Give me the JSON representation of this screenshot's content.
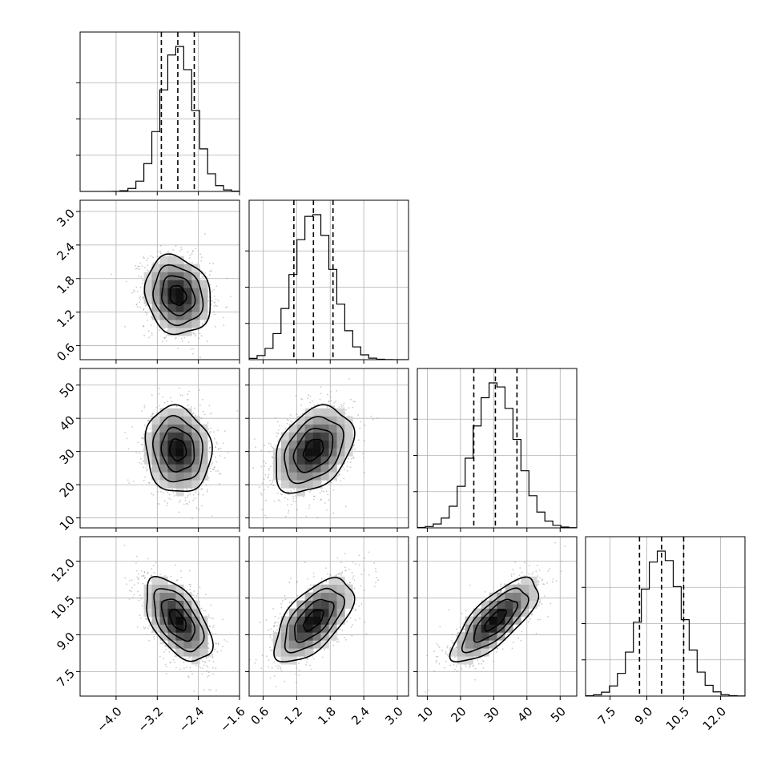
{
  "chart_data": {
    "type": "corner",
    "grid": true,
    "parameters": [
      {
        "mean": -2.8,
        "sd": 0.32,
        "range": [
          -4.7,
          -1.6
        ],
        "ticks": [
          -4.0,
          -3.2,
          -2.4,
          -1.6
        ],
        "tick_labels": [
          "−4.0",
          "−3.2",
          "−2.4",
          "−1.6"
        ],
        "quantiles": [
          -3.12,
          -2.8,
          -2.48
        ]
      },
      {
        "mean": 1.5,
        "sd": 0.35,
        "range": [
          0.35,
          3.2
        ],
        "ticks": [
          0.6,
          1.2,
          1.8,
          2.4,
          3.0
        ],
        "tick_labels": [
          "0.6",
          "1.2",
          "1.8",
          "2.4",
          "3.0"
        ],
        "quantiles": [
          1.15,
          1.5,
          1.85
        ]
      },
      {
        "mean": 30.5,
        "sd": 6.5,
        "range": [
          7,
          55
        ],
        "ticks": [
          10,
          20,
          30,
          40,
          50
        ],
        "tick_labels": [
          "10",
          "20",
          "30",
          "40",
          "50"
        ],
        "quantiles": [
          24,
          30.5,
          37
        ]
      },
      {
        "mean": 9.6,
        "sd": 0.85,
        "range": [
          6.5,
          13.0
        ],
        "ticks": [
          7.5,
          9.0,
          10.5,
          12.0
        ],
        "tick_labels": [
          "7.5",
          "9.0",
          "10.5",
          "12.0"
        ],
        "quantiles": [
          8.7,
          9.6,
          10.5
        ]
      }
    ],
    "correlations": {
      "1-0": -0.15,
      "2-0": -0.1,
      "2-1": 0.35,
      "3-0": -0.55,
      "3-1": 0.6,
      "3-2": 0.75
    },
    "histogram_bins": 20,
    "contour_levels_sigma": [
      0.5,
      1.0,
      1.5,
      2.0
    ]
  }
}
